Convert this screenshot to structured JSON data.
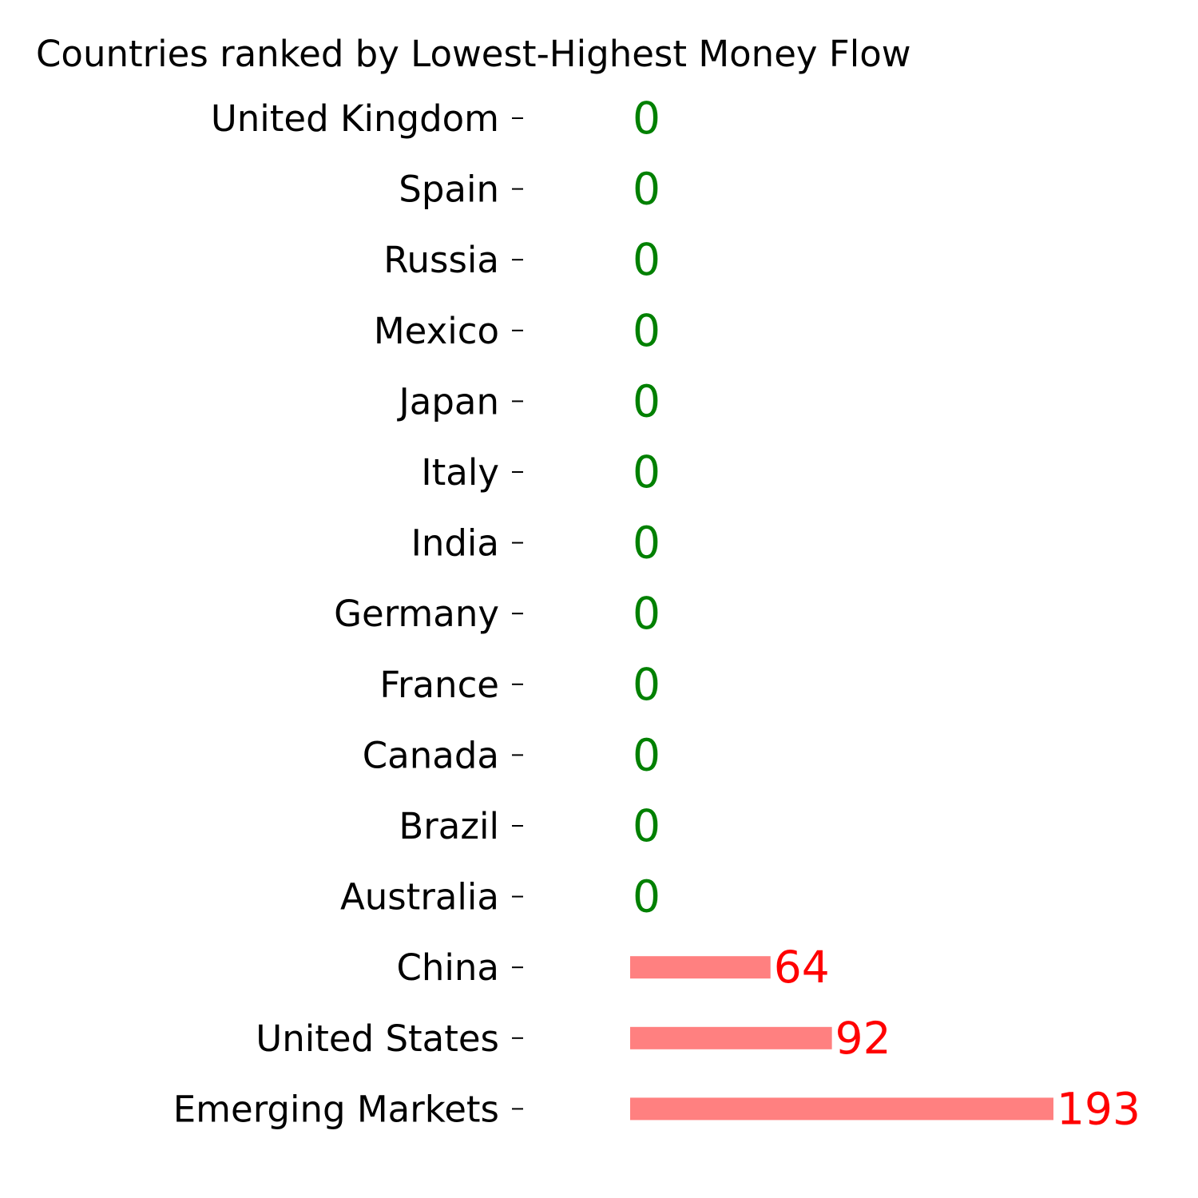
{
  "chart_data": {
    "type": "bar",
    "orientation": "horizontal",
    "title": "Countries ranked by Lowest-Highest Money Flow",
    "xlabel": "",
    "ylabel": "",
    "categories": [
      "United Kingdom",
      "Spain",
      "Russia",
      "Mexico",
      "Japan",
      "Italy",
      "India",
      "Germany",
      "France",
      "Canada",
      "Brazil",
      "Australia",
      "China",
      "United States",
      "Emerging Markets"
    ],
    "values": [
      0,
      0,
      0,
      0,
      0,
      0,
      0,
      0,
      0,
      0,
      0,
      0,
      64,
      92,
      193
    ],
    "value_labels": [
      "0",
      "0",
      "0",
      "0",
      "0",
      "0",
      "0",
      "0",
      "0",
      "0",
      "0",
      "0",
      "64",
      "92",
      "193"
    ],
    "xlim": [
      0,
      193
    ],
    "grid": false,
    "legend": "none",
    "colors": {
      "bar": "#ff8080",
      "zero_label": "#008000",
      "positive_label": "#ff0000",
      "text": "#000000"
    }
  }
}
